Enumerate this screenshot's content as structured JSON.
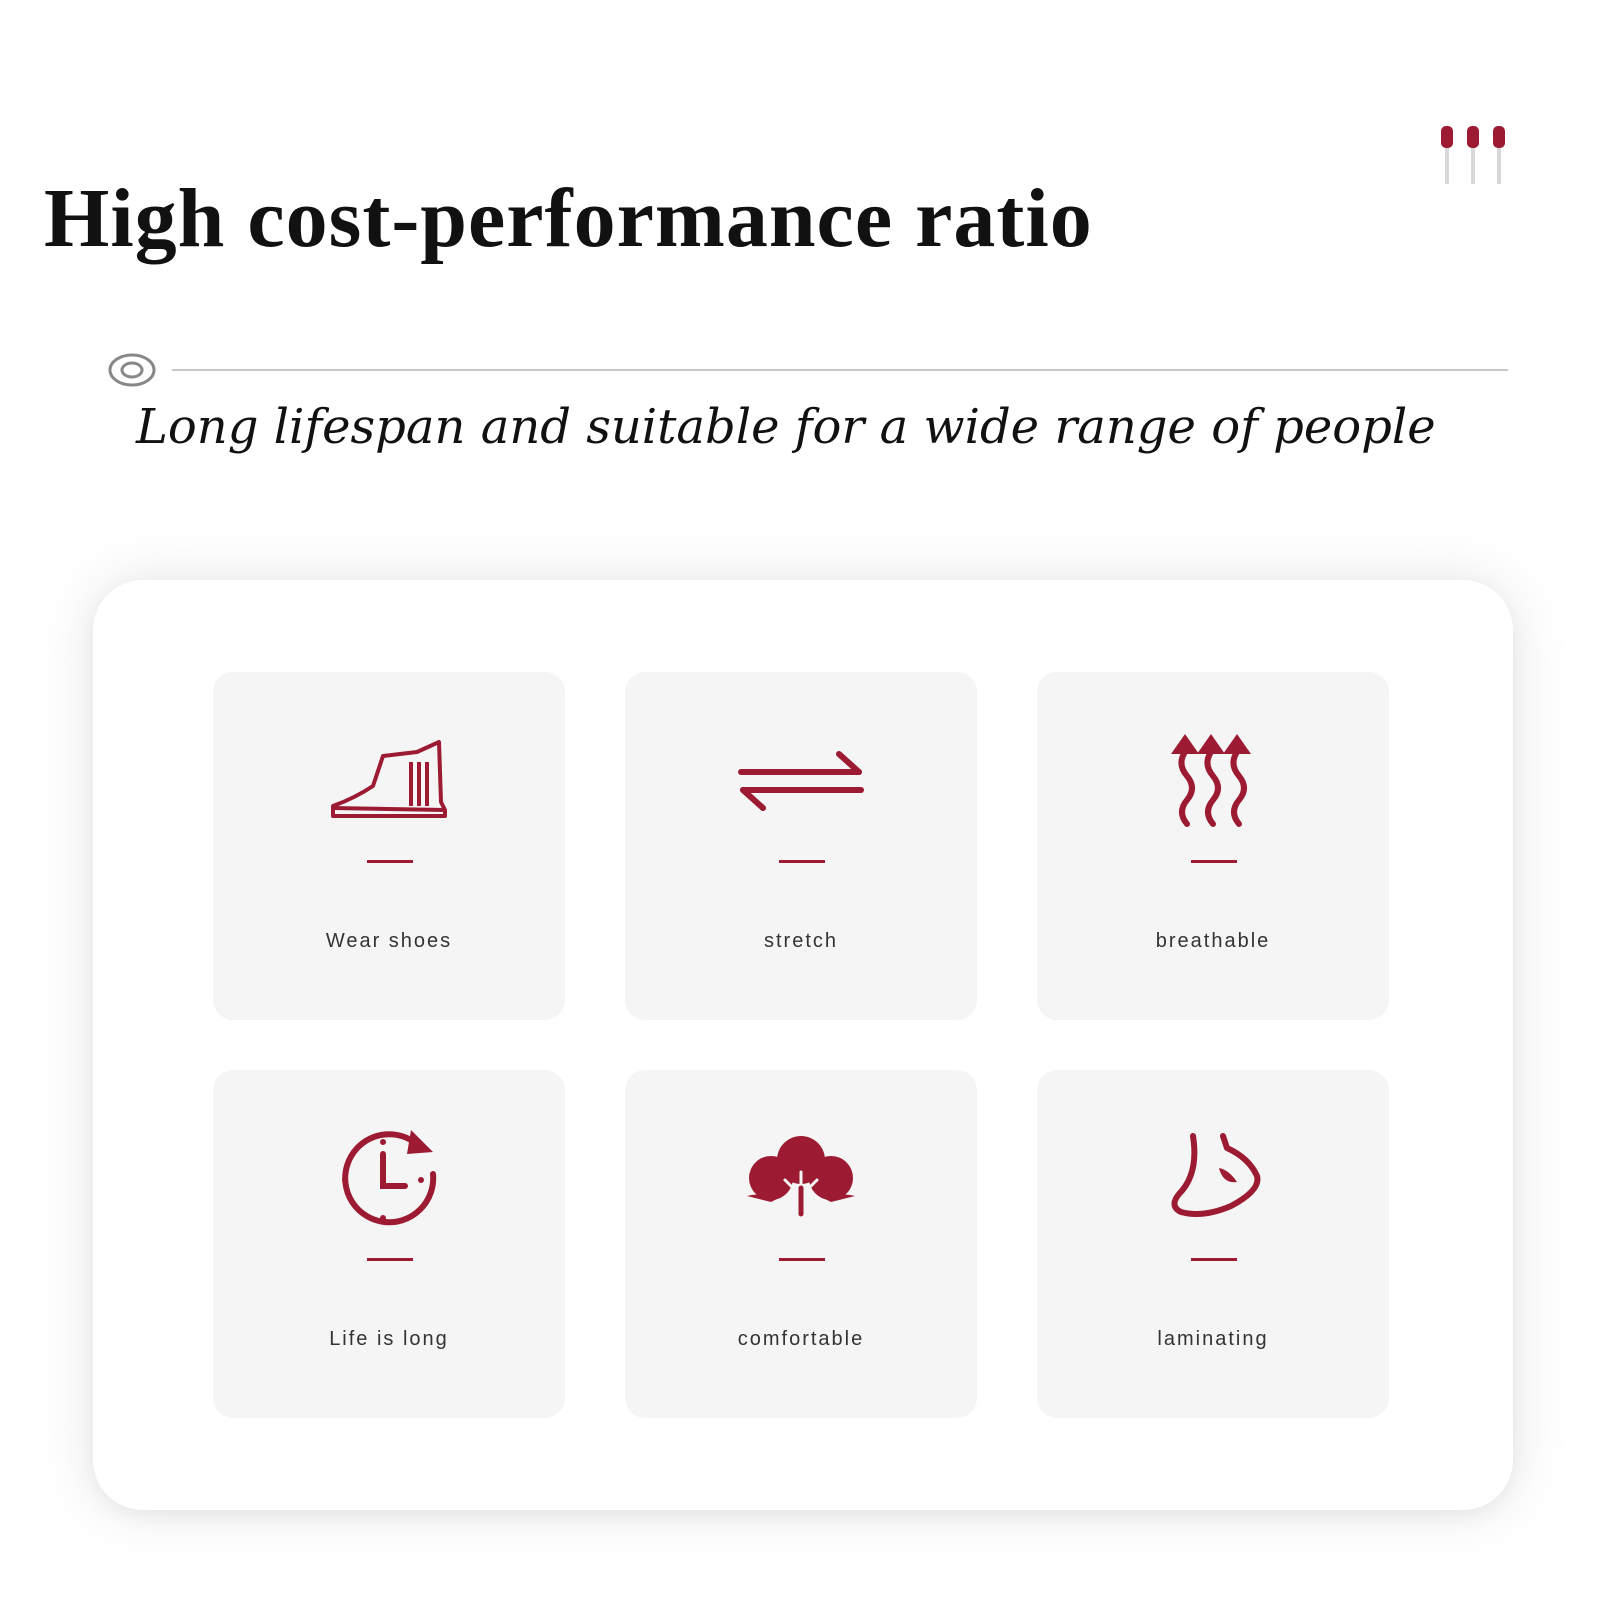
{
  "colors": {
    "accent": "#9c1b33",
    "text": "#111111",
    "card": "#f5f5f5"
  },
  "header": {
    "title": "High cost-performance ratio",
    "decoration_icon": "three-pins-icon"
  },
  "section": {
    "icon": "target-circle-icon",
    "subtitle": "Long lifespan and suitable for a wide range of people"
  },
  "features": [
    {
      "label": "Wear shoes",
      "icon": "boot-icon"
    },
    {
      "label": "stretch",
      "icon": "two-way-arrows-icon"
    },
    {
      "label": "breathable",
      "icon": "heat-waves-up-icon"
    },
    {
      "label": "Life is long",
      "icon": "clock-icon"
    },
    {
      "label": "comfortable",
      "icon": "cotton-icon"
    },
    {
      "label": "laminating",
      "icon": "foot-icon"
    }
  ]
}
